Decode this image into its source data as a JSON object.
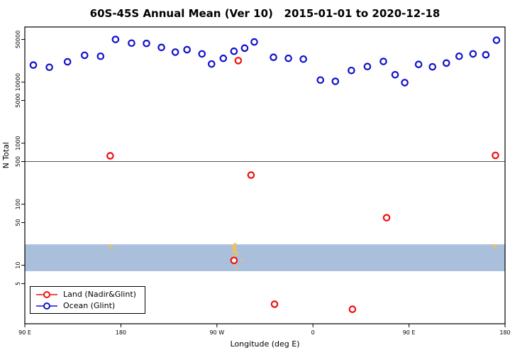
{
  "title": "60S-45S Annual Mean (Ver 10)   2015-01-01 to 2020-12-18",
  "chart_data": {
    "type": "scatter",
    "title": "60S-45S Annual Mean (Ver 10)   2015-01-01 to 2020-12-18",
    "xlabel": "Longitude (deg E)",
    "ylabel": "N Total",
    "y_scale": "log",
    "ylim": [
      1.1,
      80000
    ],
    "x_axis": {
      "span_deg": 450,
      "ticks": [
        0,
        90,
        180,
        270,
        360,
        450
      ],
      "labels": [
        "90 E",
        "180",
        "90 W",
        "0",
        "90 E",
        "180"
      ]
    },
    "y_ticks": [
      5,
      10,
      50,
      100,
      500,
      1000,
      5000,
      10000,
      50000
    ],
    "reference_line_y": 500,
    "reference_line_color": "#555555",
    "band": {
      "y_from": 8,
      "y_to": 22,
      "color": "#a9bfdc"
    },
    "series": [
      {
        "name": "Ocean (Glint)",
        "color": "#1212cc",
        "points": [
          [
            8,
            19000
          ],
          [
            23,
            17500
          ],
          [
            40,
            21500
          ],
          [
            56,
            27500
          ],
          [
            71,
            26500
          ],
          [
            85,
            50000
          ],
          [
            100,
            43500
          ],
          [
            114,
            43000
          ],
          [
            128,
            37000
          ],
          [
            141,
            31000
          ],
          [
            152,
            34000
          ],
          [
            166,
            29000
          ],
          [
            175,
            19800
          ],
          [
            186,
            24500
          ],
          [
            196,
            32000
          ],
          [
            206,
            36000
          ],
          [
            215,
            45500
          ],
          [
            233,
            25500
          ],
          [
            247,
            24500
          ],
          [
            261,
            23800
          ],
          [
            277,
            10800
          ],
          [
            291,
            10300
          ],
          [
            306,
            15500
          ],
          [
            321,
            18000
          ],
          [
            336,
            21800
          ],
          [
            347,
            13200
          ],
          [
            356,
            9800
          ],
          [
            369,
            19500
          ],
          [
            382,
            17800
          ],
          [
            395,
            20500
          ],
          [
            407,
            26500
          ],
          [
            420,
            29000
          ],
          [
            432,
            28000
          ],
          [
            442,
            48500
          ]
        ]
      },
      {
        "name": "Land (Nadir&Glint)",
        "color": "#ee1111",
        "points": [
          [
            80,
            620
          ],
          [
            200,
            22500
          ],
          [
            212,
            300
          ],
          [
            196,
            12
          ],
          [
            234,
            2.3
          ],
          [
            307,
            1.9
          ],
          [
            339,
            60
          ],
          [
            441,
            630
          ]
        ]
      }
    ],
    "land_marks": {
      "color": "#f4c24f",
      "points": [
        [
          80,
          21,
          2
        ],
        [
          81.5,
          19,
          1.5
        ],
        [
          195.5,
          21,
          2
        ],
        [
          196.5,
          19,
          2.5
        ],
        [
          197.5,
          16.5,
          2.5
        ],
        [
          196,
          14,
          2
        ],
        [
          198,
          12,
          2
        ],
        [
          197,
          10,
          1.5
        ],
        [
          198.5,
          9,
          1.5
        ],
        [
          195,
          17,
          1.5
        ],
        [
          199,
          15,
          1.5
        ],
        [
          197,
          22,
          2
        ],
        [
          203,
          12,
          1.5
        ],
        [
          440,
          21,
          2
        ],
        [
          441.5,
          19,
          1.5
        ]
      ]
    }
  },
  "labels": {
    "ylabel": "N Total",
    "xlabel": "Longitude (deg E)"
  },
  "legend": {
    "items": [
      {
        "label": "Land (Nadir&Glint)",
        "color": "#ee1111"
      },
      {
        "label": "Ocean (Glint)",
        "color": "#1212cc"
      }
    ]
  }
}
